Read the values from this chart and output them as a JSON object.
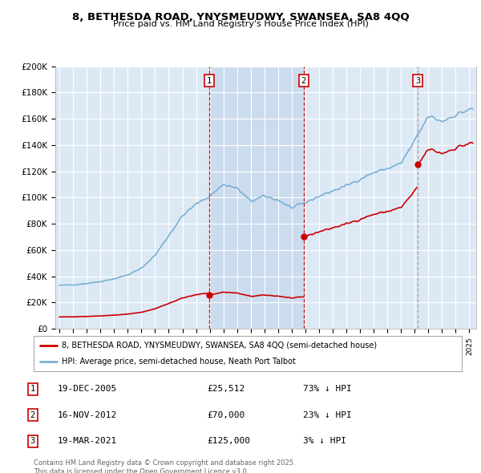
{
  "title": "8, BETHESDA ROAD, YNYSMEUDWY, SWANSEA, SA8 4QQ",
  "subtitle": "Price paid vs. HM Land Registry's House Price Index (HPI)",
  "ylim": [
    0,
    200000
  ],
  "yticks": [
    0,
    20000,
    40000,
    60000,
    80000,
    100000,
    120000,
    140000,
    160000,
    180000,
    200000
  ],
  "ytick_labels": [
    "£0",
    "£20K",
    "£40K",
    "£60K",
    "£80K",
    "£100K",
    "£120K",
    "£140K",
    "£160K",
    "£180K",
    "£200K"
  ],
  "plot_bg_color": "#dce9f5",
  "line_color_red": "#cc0000",
  "line_color_blue": "#7ab0d4",
  "shade_color": "#c5d9ee",
  "transactions": [
    {
      "date_str": "19-DEC-2005",
      "date_num": 2005.964,
      "price": 25512,
      "label": "1",
      "pct": "73%",
      "dir": "↓"
    },
    {
      "date_str": "16-NOV-2012",
      "date_num": 2012.874,
      "price": 70000,
      "label": "2",
      "pct": "23%",
      "dir": "↓"
    },
    {
      "date_str": "19-MAR-2021",
      "date_num": 2021.215,
      "price": 125000,
      "label": "3",
      "pct": "3%",
      "dir": "↓"
    }
  ],
  "legend_label_red": "8, BETHESDA ROAD, YNYSMEUDWY, SWANSEA, SA8 4QQ (semi-detached house)",
  "legend_label_blue": "HPI: Average price, semi-detached house, Neath Port Talbot",
  "footer": "Contains HM Land Registry data © Crown copyright and database right 2025.\nThis data is licensed under the Open Government Licence v3.0.",
  "xmin": 1994.7,
  "xmax": 2025.5
}
